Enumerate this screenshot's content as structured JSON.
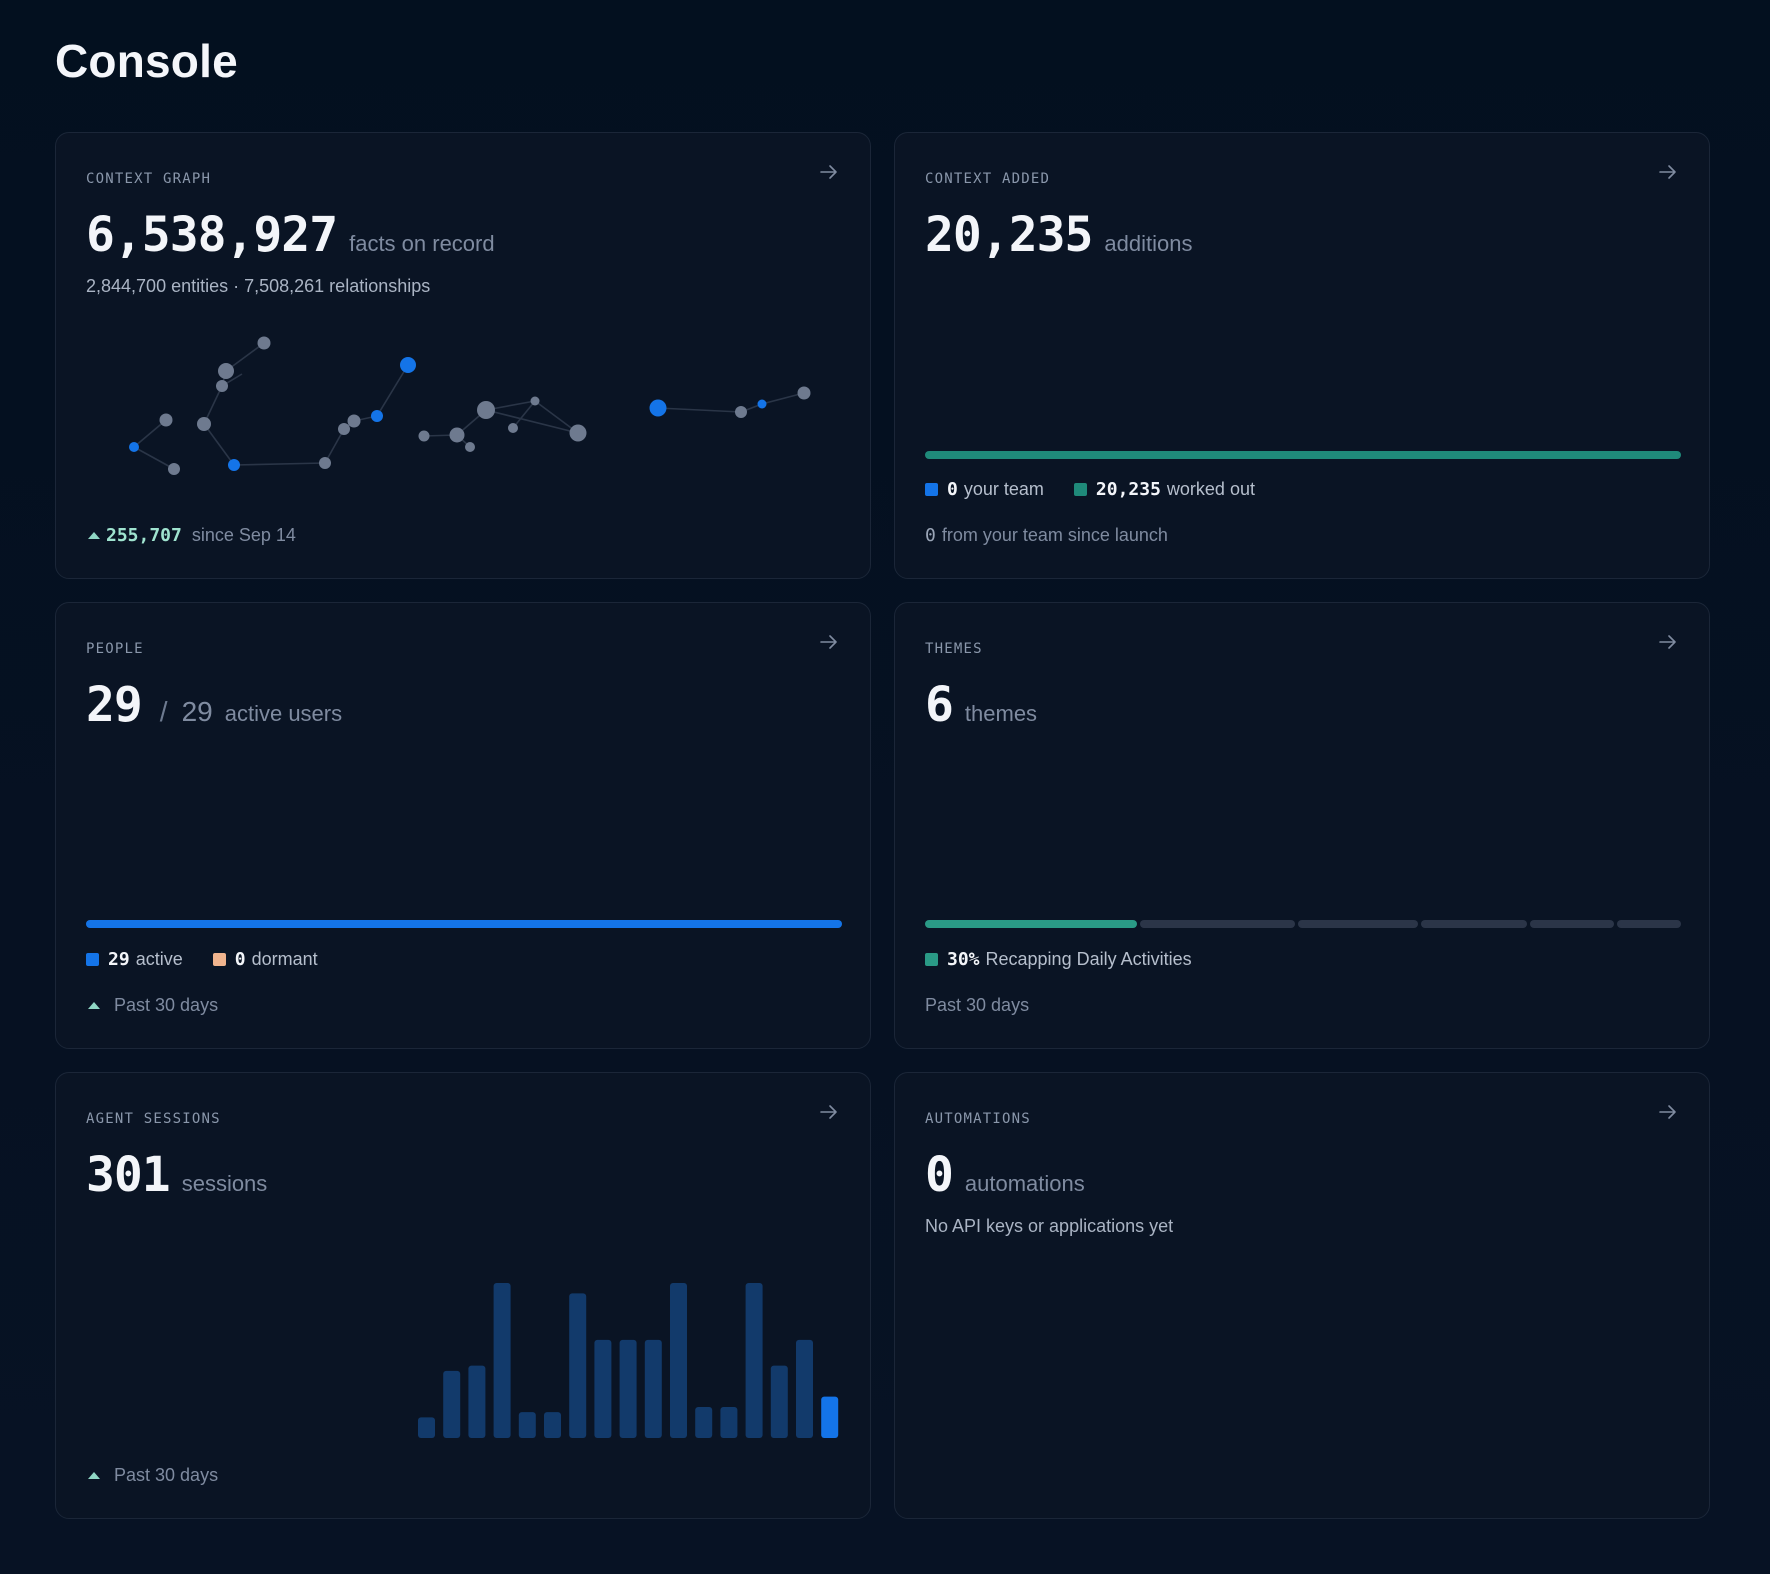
{
  "page": {
    "title": "Console"
  },
  "context_graph": {
    "label": "CONTEXT GRAPH",
    "value": "6,538,927",
    "unit": "facts on record",
    "subline": "2,844,700 entities · 7,508,261 relationships",
    "delta": "255,707",
    "delta_suffix": "since Sep 14"
  },
  "context_added": {
    "label": "CONTEXT ADDED",
    "value": "20,235",
    "unit": "additions",
    "share_your_team": 0,
    "share_worked_out": 1,
    "legend": [
      {
        "value": "0",
        "label": "your team",
        "color": "#1474e8"
      },
      {
        "value": "20,235",
        "label": "worked out",
        "color": "#1f8a7a"
      }
    ],
    "footer_value": "0",
    "footer_text": "from your team since launch"
  },
  "people": {
    "label": "PEOPLE",
    "value": "29",
    "total": "29",
    "unit": "active users",
    "share_active": 1,
    "legend": [
      {
        "value": "29",
        "label": "active",
        "color": "#1474e8"
      },
      {
        "value": "0",
        "label": "dormant",
        "color": "#f0b48e"
      }
    ],
    "footer": "Past 30 days"
  },
  "themes": {
    "label": "THEMES",
    "value": "6",
    "unit": "themes",
    "segments": [
      30,
      22,
      17,
      15,
      12,
      9
    ],
    "legend": [
      {
        "value": "30%",
        "label": "Recapping Daily Activities",
        "color": "#2a9a86"
      }
    ],
    "footer": "Past 30 days"
  },
  "agent_sessions": {
    "label": "AGENT SESSIONS",
    "value": "301",
    "unit": "sessions",
    "daily": [
      4,
      13,
      14,
      30,
      5,
      5,
      28,
      19,
      19,
      19,
      30,
      6,
      6,
      30,
      14,
      19,
      8
    ],
    "footer": "Past 30 days"
  },
  "automations": {
    "label": "AUTOMATIONS",
    "value": "0",
    "unit": "automations",
    "subline": "No API keys or applications yet"
  },
  "colors": {
    "accent_blue": "#1474e8",
    "teal": "#1f8a7a",
    "node_gray": "#6e7a8f"
  }
}
